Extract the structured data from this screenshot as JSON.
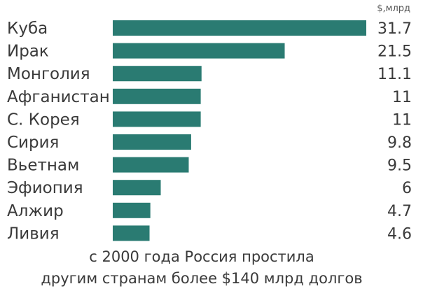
{
  "chart_data": {
    "type": "bar",
    "orientation": "horizontal",
    "unit_label": "$,млрд",
    "categories": [
      "Куба",
      "Ирак",
      "Монголия",
      "Афганистан",
      "С. Корея",
      "Сирия",
      "Вьетнам",
      "Эфиопия",
      "Алжир",
      "Ливия"
    ],
    "values": [
      31.7,
      21.5,
      11.1,
      11,
      11,
      9.8,
      9.5,
      6,
      4.7,
      4.6
    ],
    "value_labels": [
      "31.7",
      "21.5",
      "11.1",
      "11",
      "11",
      "9.8",
      "9.5",
      "6",
      "4.7",
      "4.6"
    ],
    "bar_color": "#2a7b72",
    "caption_lines": [
      "с 2000 года Россия простила",
      "другим странам более $140 млрд долгов"
    ],
    "xlim": [
      0,
      31.7
    ],
    "grid": false,
    "legend": "none"
  }
}
